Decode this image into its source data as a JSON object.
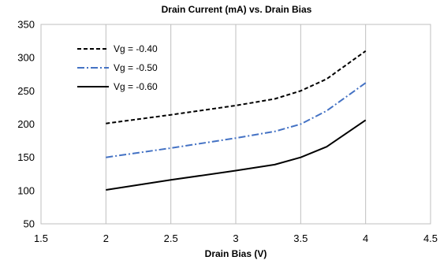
{
  "chart_data": {
    "type": "line",
    "title": "Drain Current (mA) vs. Drain Bias",
    "xlabel": "Drain Bias (V)",
    "ylabel": "",
    "xlim": [
      1.5,
      4.5
    ],
    "ylim": [
      50,
      350
    ],
    "xticks": [
      "1.5",
      "2",
      "2.5",
      "3",
      "3.5",
      "4",
      "4.5"
    ],
    "yticks": [
      "50",
      "100",
      "150",
      "200",
      "250",
      "300",
      "350"
    ],
    "grid": "vertical",
    "legend": "top-left",
    "series": [
      {
        "name": "Vg = -0.40",
        "style": "dashed",
        "color": "#000000",
        "points": [
          [
            2.0,
            201
          ],
          [
            2.5,
            214
          ],
          [
            3.0,
            228
          ],
          [
            3.3,
            238
          ],
          [
            3.5,
            250
          ],
          [
            3.7,
            268
          ],
          [
            4.0,
            310
          ]
        ]
      },
      {
        "name": "Vg = -0.50",
        "style": "dash-dot",
        "color": "#4472C4",
        "points": [
          [
            2.0,
            150
          ],
          [
            2.5,
            164
          ],
          [
            3.0,
            179
          ],
          [
            3.3,
            189
          ],
          [
            3.5,
            200
          ],
          [
            3.7,
            220
          ],
          [
            4.0,
            262
          ]
        ]
      },
      {
        "name": "Vg = -0.60",
        "style": "solid",
        "color": "#000000",
        "points": [
          [
            2.0,
            101
          ],
          [
            2.5,
            116
          ],
          [
            3.0,
            130
          ],
          [
            3.3,
            139
          ],
          [
            3.5,
            150
          ],
          [
            3.7,
            166
          ],
          [
            4.0,
            206
          ]
        ]
      }
    ]
  }
}
